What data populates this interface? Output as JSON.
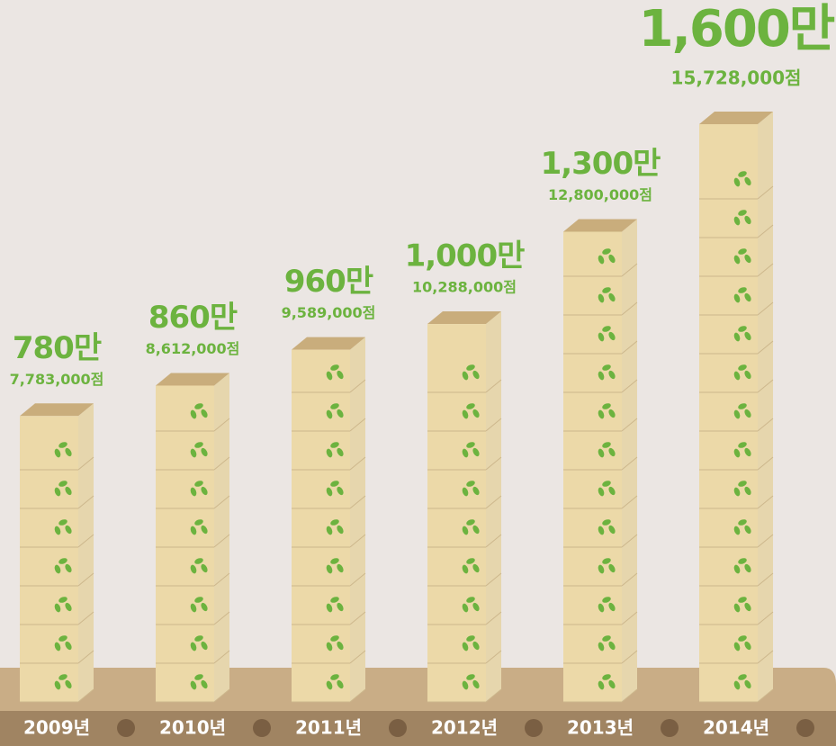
{
  "chart_data": {
    "type": "bar",
    "categories": [
      "2009년",
      "2010년",
      "2011년",
      "2012년",
      "2013년",
      "2014년"
    ],
    "values": [
      7783000,
      8612000,
      9589000,
      10288000,
      12800000,
      15728000
    ],
    "value_labels": [
      "7,783,000점",
      "8,612,000점",
      "9,589,000점",
      "10,288,000점",
      "12,800,000점",
      "15,728,000점"
    ],
    "rounded_labels": [
      "780만",
      "860만",
      "960만",
      "1,000만",
      "1,300만",
      "1,600만"
    ],
    "color": "#ecd9a8"
  }
}
